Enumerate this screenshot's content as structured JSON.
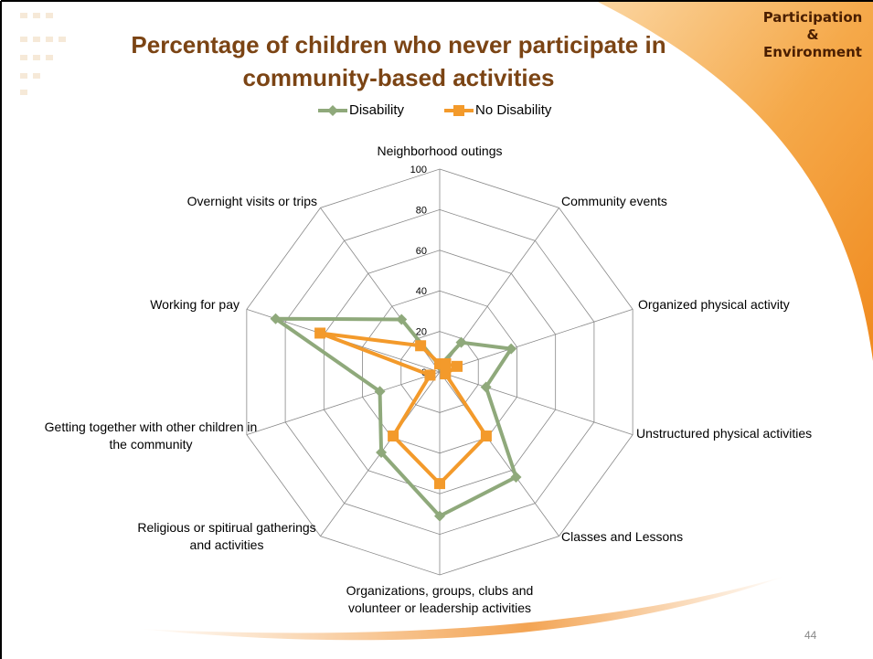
{
  "slide": {
    "corner_label": [
      "Participation",
      "&",
      "Environment"
    ],
    "page_number": "44"
  },
  "chart_data": {
    "type": "radar",
    "title": [
      "Percentage of children who never participate in",
      "community-based activities"
    ],
    "categories": [
      "Neighborhood outings",
      "Community events",
      "Organized physical activity",
      "Unstructured physical activities",
      "Classes and Lessons",
      "Organizations, groups, clubs and volunteer or leadership activities",
      "Religious or spitirual gatherings and activities",
      "Getting together with other children in the community",
      "Working for pay",
      "Overnight visits or trips"
    ],
    "series": [
      {
        "name": "Disability",
        "color": "#8fa97b",
        "values": [
          3,
          18,
          37,
          24,
          64,
          71,
          49,
          31,
          85,
          32
        ]
      },
      {
        "name": "No Disability",
        "color": "#f39a2b",
        "values": [
          4,
          5,
          9,
          3,
          39,
          55,
          39,
          5,
          62,
          16
        ]
      }
    ],
    "ylim": [
      0,
      100
    ],
    "yticks": [
      0,
      20,
      40,
      60,
      80,
      100
    ],
    "grid": true,
    "legend": "top"
  }
}
